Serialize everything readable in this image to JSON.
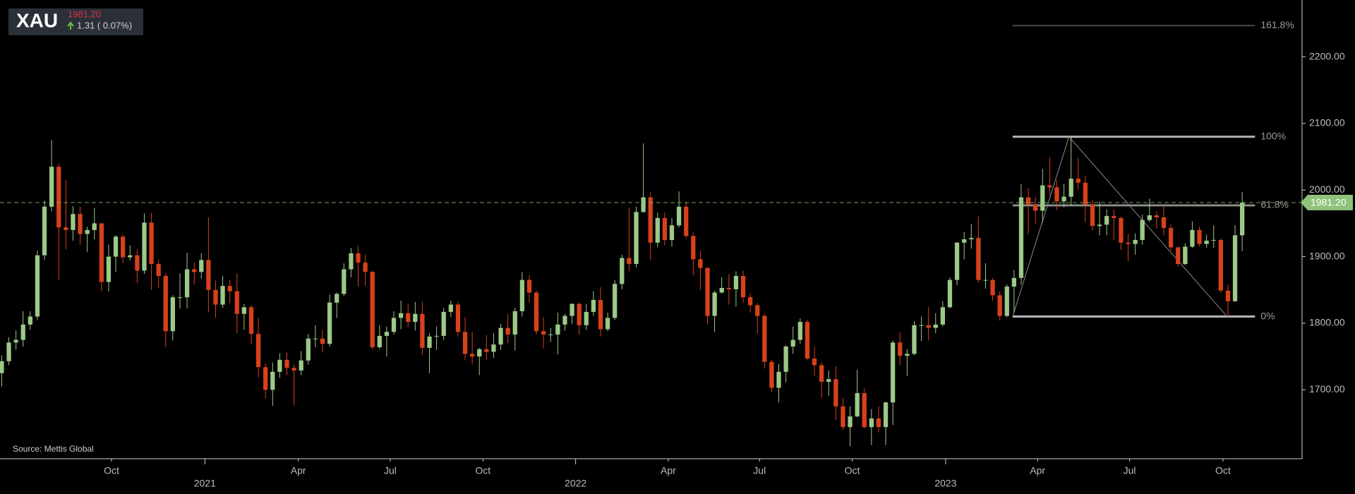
{
  "chart_data": {
    "type": "candlestick",
    "title": "XAU",
    "last_price": {
      "value": 1981.2,
      "label": "1981.20"
    },
    "change": "1.31 ( 0.07%)",
    "source": "Source: Mettis Global",
    "up_color": "#9cc987",
    "down_color": "#d8411c",
    "last_price_color": "#8fc27a",
    "open": [
      1725,
      1743,
      1771,
      1775,
      1798,
      1810,
      1902,
      1975,
      2035,
      1944,
      1940,
      1964,
      1934,
      1940,
      1950,
      1862,
      1900,
      1930,
      1899,
      1902,
      1879,
      1951,
      1889,
      1871,
      1788,
      1839,
      1839,
      1881,
      1877,
      1895,
      1850,
      1828,
      1856,
      1848,
      1814,
      1824,
      1784,
      1734,
      1700,
      1727,
      1745,
      1733,
      1729,
      1744,
      1777,
      1777,
      1769,
      1831,
      1844,
      1881,
      1905,
      1891,
      1877,
      1764,
      1781,
      1787,
      1808,
      1815,
      1802,
      1814,
      1763,
      1780,
      1781,
      1817,
      1828,
      1787,
      1754,
      1750,
      1761,
      1757,
      1768,
      1793,
      1783,
      1818,
      1865,
      1846,
      1788,
      1783,
      1783,
      1798,
      1811,
      1829,
      1797,
      1817,
      1835,
      1791,
      1808,
      1859,
      1898,
      1889,
      1967,
      1989,
      1921,
      1958,
      1925,
      1947,
      1975,
      1931,
      1896,
      1883,
      1811,
      1846,
      1853,
      1851,
      1871,
      1839,
      1827,
      1811,
      1742,
      1703,
      1727,
      1765,
      1775,
      1802,
      1747,
      1737,
      1712,
      1716,
      1675,
      1644,
      1660,
      1695,
      1644,
      1657,
      1644,
      1681,
      1771,
      1751,
      1754,
      1797,
      1797,
      1793,
      1798,
      1824,
      1865,
      1921,
      1926,
      1928,
      1865,
      1865,
      1842,
      1811,
      1855,
      1868,
      1989,
      1978,
      1969,
      2007,
      2004,
      1983,
      1990,
      2017,
      2011,
      1978,
      1946,
      1948,
      1961,
      1958,
      1921,
      1919,
      1925,
      1955,
      1962,
      1959,
      1943,
      1914,
      1889,
      1915,
      1940,
      1919,
      1924,
      1925,
      1849,
      1833,
      1932
    ],
    "high": [
      1752,
      1779,
      1789,
      1818,
      1818,
      1909,
      1984,
      2075,
      2040,
      2015,
      1976,
      1975,
      1945,
      1973,
      1950,
      1918,
      1932,
      1933,
      1917,
      1911,
      1965,
      1966,
      1896,
      1875,
      1842,
      1875,
      1906,
      1891,
      1905,
      1959,
      1864,
      1871,
      1865,
      1875,
      1829,
      1827,
      1808,
      1740,
      1741,
      1755,
      1756,
      1738,
      1758,
      1784,
      1797,
      1790,
      1843,
      1846,
      1890,
      1913,
      1916,
      1903,
      1879,
      1797,
      1795,
      1818,
      1834,
      1829,
      1832,
      1832,
      1785,
      1795,
      1823,
      1834,
      1833,
      1809,
      1787,
      1763,
      1782,
      1785,
      1799,
      1814,
      1823,
      1877,
      1872,
      1849,
      1809,
      1793,
      1816,
      1814,
      1830,
      1831,
      1829,
      1848,
      1854,
      1816,
      1865,
      1903,
      1974,
      1975,
      2070,
      1997,
      1966,
      1966,
      1958,
      1998,
      1982,
      1936,
      1909,
      1884,
      1849,
      1869,
      1874,
      1878,
      1879,
      1845,
      1830,
      1814,
      1745,
      1739,
      1767,
      1795,
      1807,
      1805,
      1765,
      1741,
      1729,
      1735,
      1688,
      1675,
      1730,
      1702,
      1671,
      1675,
      1682,
      1774,
      1786,
      1761,
      1803,
      1810,
      1824,
      1815,
      1833,
      1869,
      1922,
      1937,
      1949,
      1960,
      1890,
      1868,
      1848,
      1858,
      1880,
      2009,
      2003,
      1990,
      2032,
      2049,
      2015,
      2009,
      2080,
      2048,
      2022,
      1985,
      1983,
      1971,
      1971,
      1960,
      1934,
      1935,
      1963,
      1987,
      1968,
      1975,
      1948,
      1915,
      1920,
      1953,
      1945,
      1933,
      1947,
      1927,
      1858,
      1947,
      1997
    ],
    "low": [
      1705,
      1737,
      1760,
      1765,
      1790,
      1805,
      1895,
      1968,
      1865,
      1911,
      1924,
      1918,
      1907,
      1926,
      1848,
      1848,
      1877,
      1890,
      1894,
      1860,
      1874,
      1850,
      1853,
      1764,
      1774,
      1822,
      1822,
      1858,
      1867,
      1817,
      1808,
      1823,
      1830,
      1785,
      1790,
      1768,
      1719,
      1687,
      1676,
      1718,
      1722,
      1677,
      1722,
      1738,
      1764,
      1756,
      1765,
      1808,
      1841,
      1869,
      1855,
      1856,
      1761,
      1761,
      1750,
      1783,
      1791,
      1794,
      1789,
      1753,
      1725,
      1760,
      1775,
      1809,
      1780,
      1745,
      1738,
      1722,
      1745,
      1748,
      1760,
      1770,
      1759,
      1810,
      1831,
      1783,
      1762,
      1772,
      1753,
      1789,
      1799,
      1783,
      1790,
      1811,
      1780,
      1788,
      1805,
      1851,
      1878,
      1884,
      1966,
      1895,
      1914,
      1917,
      1915,
      1944,
      1928,
      1872,
      1850,
      1798,
      1787,
      1845,
      1828,
      1825,
      1831,
      1816,
      1784,
      1732,
      1697,
      1681,
      1711,
      1754,
      1769,
      1745,
      1721,
      1688,
      1691,
      1654,
      1640,
      1615,
      1659,
      1642,
      1617,
      1636,
      1617,
      1647,
      1737,
      1721,
      1752,
      1773,
      1774,
      1785,
      1795,
      1822,
      1857,
      1896,
      1912,
      1861,
      1852,
      1834,
      1804,
      1809,
      1816,
      1858,
      1934,
      1949,
      1951,
      1992,
      1970,
      1974,
      1977,
      2000,
      1952,
      1939,
      1932,
      1932,
      1925,
      1910,
      1893,
      1903,
      1918,
      1952,
      1942,
      1932,
      1909,
      1885,
      1887,
      1913,
      1915,
      1913,
      1913,
      1846,
      1810,
      1832,
      1908
    ],
    "close": [
      1743,
      1771,
      1775,
      1798,
      1810,
      1902,
      1975,
      2035,
      1944,
      1940,
      1964,
      1934,
      1940,
      1950,
      1862,
      1900,
      1930,
      1899,
      1902,
      1879,
      1951,
      1889,
      1871,
      1788,
      1839,
      1839,
      1881,
      1877,
      1895,
      1850,
      1828,
      1856,
      1848,
      1814,
      1824,
      1784,
      1734,
      1700,
      1727,
      1745,
      1733,
      1729,
      1744,
      1777,
      1777,
      1769,
      1831,
      1844,
      1881,
      1905,
      1891,
      1877,
      1764,
      1781,
      1787,
      1808,
      1815,
      1802,
      1814,
      1763,
      1780,
      1781,
      1817,
      1828,
      1787,
      1754,
      1750,
      1761,
      1757,
      1768,
      1793,
      1783,
      1818,
      1865,
      1846,
      1788,
      1783,
      1783,
      1798,
      1811,
      1829,
      1797,
      1817,
      1835,
      1791,
      1808,
      1859,
      1898,
      1889,
      1967,
      1989,
      1921,
      1958,
      1925,
      1947,
      1975,
      1931,
      1896,
      1883,
      1811,
      1846,
      1853,
      1851,
      1871,
      1839,
      1827,
      1811,
      1742,
      1703,
      1727,
      1765,
      1775,
      1802,
      1747,
      1737,
      1712,
      1716,
      1675,
      1644,
      1660,
      1695,
      1644,
      1657,
      1644,
      1681,
      1771,
      1751,
      1754,
      1797,
      1797,
      1793,
      1798,
      1824,
      1865,
      1921,
      1926,
      1928,
      1865,
      1865,
      1842,
      1811,
      1855,
      1868,
      1989,
      1978,
      1969,
      2007,
      2004,
      1983,
      1990,
      2017,
      2011,
      1978,
      1946,
      1948,
      1961,
      1958,
      1921,
      1919,
      1925,
      1955,
      1962,
      1959,
      1943,
      1914,
      1889,
      1915,
      1940,
      1919,
      1924,
      1925,
      1849,
      1833,
      1932,
      1981
    ],
    "xlim": [
      -0.24,
      182.4
    ],
    "xticks": [
      {
        "value": 15.4,
        "label": "Oct"
      },
      {
        "value": 28.5,
        "label": "2021"
      },
      {
        "value": 41.6,
        "label": "Apr"
      },
      {
        "value": 54.5,
        "label": "Jul"
      },
      {
        "value": 67.5,
        "label": "Oct"
      },
      {
        "value": 80.5,
        "label": "2022"
      },
      {
        "value": 93.5,
        "label": "Apr"
      },
      {
        "value": 106.3,
        "label": "Jul"
      },
      {
        "value": 119.3,
        "label": "Oct"
      },
      {
        "value": 132.4,
        "label": "2023"
      },
      {
        "value": 145.3,
        "label": "Apr"
      },
      {
        "value": 158.2,
        "label": "Jul"
      },
      {
        "value": 171.3,
        "label": "Oct"
      }
    ],
    "ylim": [
      1596.5,
      2285.4
    ],
    "yticks": [
      {
        "value": 1700,
        "label": "1700.00"
      },
      {
        "value": 1800,
        "label": "1800.00"
      },
      {
        "value": 1900,
        "label": "1900.00"
      },
      {
        "value": 2000,
        "label": "2000.00"
      },
      {
        "value": 2100,
        "label": "2100.00"
      },
      {
        "value": 2200,
        "label": "2200.00"
      }
    ],
    "fib": {
      "levels": [
        {
          "value": 1810,
          "label": "0%"
        },
        {
          "value": 1977,
          "label": "61.8%"
        },
        {
          "value": 2080,
          "label": "100%"
        },
        {
          "value": 2247,
          "label": "161.8%"
        }
      ],
      "colors": [
        "#b5b5b5",
        "#8a8a8a",
        "#b5b5b5",
        "#4a4a4a"
      ],
      "x_range": [
        141.8,
        175.8
      ],
      "trend_x": [
        141.8,
        149.7,
        171.9
      ],
      "trend_y": [
        1810,
        2080,
        1810
      ]
    }
  }
}
